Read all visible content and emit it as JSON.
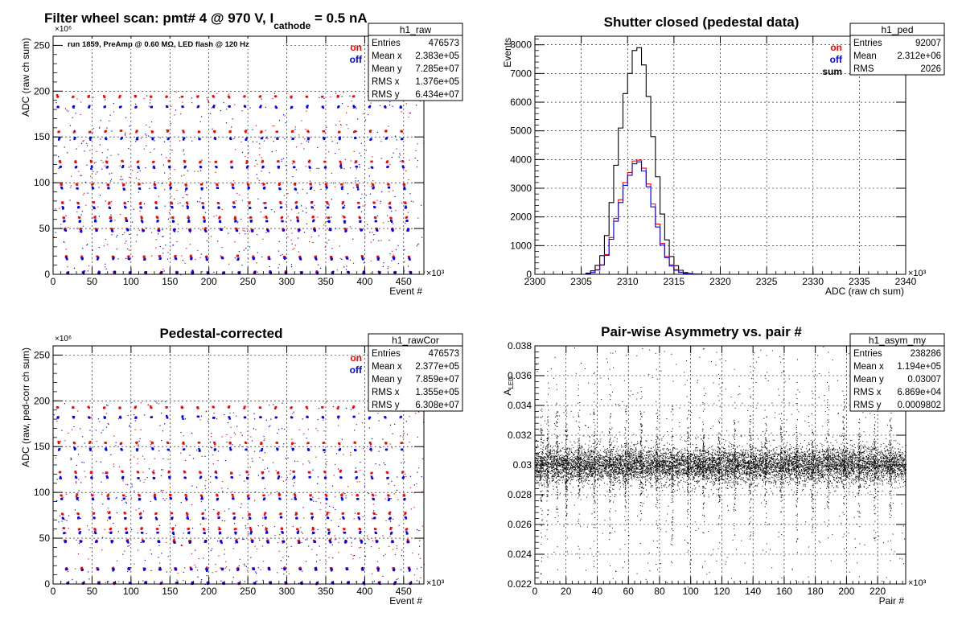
{
  "chart_data": [
    {
      "id": "raw",
      "type": "scatter",
      "title_main": "Filter wheel scan: pmt#   4 @   970 V, I",
      "title_sub": "cathode",
      "title_tail": " = 0.5 nA",
      "annotation": "run 1859, PreAmp @ 0.60 MΩ, LED flash @  120 Hz",
      "xlabel": "Event #",
      "ylabel": "ADC (raw ch sum)",
      "x_exponent": "×10³",
      "y_exponent": "×10⁶",
      "xlim": [
        0,
        476
      ],
      "ylim": [
        0,
        260
      ],
      "xticks": [
        0,
        50,
        100,
        150,
        200,
        250,
        300,
        350,
        400,
        450
      ],
      "yticks": [
        0,
        50,
        100,
        150,
        200,
        250
      ],
      "grid": true,
      "legend": [
        {
          "name": "on",
          "color": "#ff0000"
        },
        {
          "name": "off",
          "color": "#0000ff"
        }
      ],
      "legend_position": "top-right",
      "stats": {
        "name": "h1_raw",
        "rows": [
          [
            "Entries",
            "476573"
          ],
          [
            "Mean x",
            "2.383e+05"
          ],
          [
            "Mean y",
            "7.285e+07"
          ],
          [
            "RMS x",
            "1.376e+05"
          ],
          [
            "RMS y",
            "6.434e+07"
          ]
        ]
      },
      "series": [
        {
          "name": "on",
          "color": "#ff0000",
          "levels": [
            194,
            156,
            123,
            98,
            78,
            62,
            49,
            19,
            2
          ]
        },
        {
          "name": "off",
          "color": "#0000ff",
          "levels": [
            183,
            148,
            117,
            94,
            73,
            58,
            48,
            17,
            2
          ]
        }
      ],
      "period": 20
    },
    {
      "id": "ped",
      "type": "histogram",
      "title": "Shutter closed (pedestal data)",
      "xlabel": "ADC (raw ch sum)",
      "ylabel": "Events",
      "x_exponent": "×10³",
      "xlim": [
        2300,
        2340
      ],
      "ylim": [
        0,
        8300
      ],
      "xticks": [
        2300,
        2305,
        2310,
        2315,
        2320,
        2325,
        2330,
        2335,
        2340
      ],
      "yticks": [
        0,
        1000,
        2000,
        3000,
        4000,
        5000,
        6000,
        7000,
        8000
      ],
      "grid": true,
      "legend": [
        {
          "name": "on",
          "color": "#ff0000"
        },
        {
          "name": "off",
          "color": "#0000ff"
        },
        {
          "name": "sum",
          "color": "#000000"
        }
      ],
      "legend_position": "top-right",
      "stats": {
        "name": "h1_ped",
        "rows": [
          [
            "Entries",
            "92007"
          ],
          [
            "Mean",
            "2.312e+06"
          ],
          [
            "RMS",
            "2026"
          ]
        ]
      },
      "bin_width": 0.5,
      "bin_start": 2305.5,
      "series": [
        {
          "name": "sum",
          "color": "#000000",
          "values": [
            40,
            120,
            310,
            650,
            1350,
            2500,
            3800,
            5100,
            6300,
            7000,
            7800,
            7900,
            7300,
            6200,
            4800,
            3400,
            2100,
            1200,
            620,
            300,
            140,
            60,
            25,
            10,
            4
          ]
        },
        {
          "name": "on",
          "color": "#ff0000",
          "values": [
            20,
            60,
            160,
            330,
            690,
            1280,
            1950,
            2600,
            3200,
            3550,
            3950,
            3980,
            3700,
            3150,
            2450,
            1750,
            1080,
            620,
            330,
            160,
            75,
            32,
            14,
            5,
            2
          ]
        },
        {
          "name": "off",
          "color": "#0000ff",
          "values": [
            20,
            60,
            150,
            320,
            660,
            1220,
            1850,
            2500,
            3100,
            3450,
            3850,
            3920,
            3600,
            3050,
            2350,
            1650,
            1020,
            580,
            290,
            140,
            65,
            28,
            11,
            5,
            2
          ]
        }
      ]
    },
    {
      "id": "cor",
      "type": "scatter",
      "title": "Pedestal-corrected",
      "xlabel": "Event #",
      "ylabel": "ADC (raw, ped-corr ch sum)",
      "x_exponent": "×10³",
      "y_exponent": "×10⁶",
      "xlim": [
        0,
        476
      ],
      "ylim": [
        0,
        260
      ],
      "xticks": [
        0,
        50,
        100,
        150,
        200,
        250,
        300,
        350,
        400,
        450
      ],
      "yticks": [
        0,
        50,
        100,
        150,
        200,
        250
      ],
      "grid": true,
      "legend": [
        {
          "name": "on",
          "color": "#ff0000"
        },
        {
          "name": "off",
          "color": "#0000ff"
        }
      ],
      "legend_position": "top-right",
      "stats": {
        "name": "h1_rawCor",
        "rows": [
          [
            "Entries",
            "476573"
          ],
          [
            "Mean x",
            "2.377e+05"
          ],
          [
            "Mean y",
            "7.859e+07"
          ],
          [
            "RMS x",
            "1.355e+05"
          ],
          [
            "RMS y",
            "6.308e+07"
          ]
        ]
      },
      "series": [
        {
          "name": "on",
          "color": "#ff0000",
          "levels": [
            193,
            154,
            122,
            97,
            77,
            60,
            47,
            17,
            1
          ]
        },
        {
          "name": "off",
          "color": "#0000ff",
          "levels": [
            182,
            147,
            116,
            93,
            72,
            56,
            46,
            16,
            1
          ]
        }
      ],
      "period": 20
    },
    {
      "id": "asym",
      "type": "scatter",
      "title": "Pair-wise Asymmetry vs. pair #",
      "xlabel": "Pair #",
      "ylabel": "A",
      "ylabel_sub": "LED",
      "x_exponent": "×10³",
      "xlim": [
        0,
        238
      ],
      "ylim": [
        0.022,
        0.038
      ],
      "xticks": [
        0,
        20,
        40,
        60,
        80,
        100,
        120,
        140,
        160,
        180,
        200,
        220
      ],
      "yticks": [
        0.022,
        0.024,
        0.026,
        0.028,
        0.03,
        0.032,
        0.034,
        0.036,
        0.038
      ],
      "ytick_labels": [
        "0.022",
        "0.024",
        "0.026",
        "0.028",
        "0.03",
        "0.032",
        "0.034",
        "0.036",
        "0.038"
      ],
      "grid": true,
      "stats": {
        "name": "h1_asym_my",
        "rows": [
          [
            "Entries",
            "238286"
          ],
          [
            "Mean x",
            "1.194e+05"
          ],
          [
            "Mean y",
            "0.03007"
          ],
          [
            "RMS x",
            "6.869e+04"
          ],
          [
            "RMS y",
            "0.0009802"
          ]
        ]
      },
      "center": 0.03,
      "spread": 0.0006,
      "spike_positions": [
        4,
        8,
        14,
        20,
        28,
        38,
        48,
        58,
        68,
        78,
        88,
        98,
        108,
        118,
        128,
        138,
        148,
        158,
        168,
        178,
        188,
        198,
        208,
        218,
        228
      ]
    }
  ]
}
